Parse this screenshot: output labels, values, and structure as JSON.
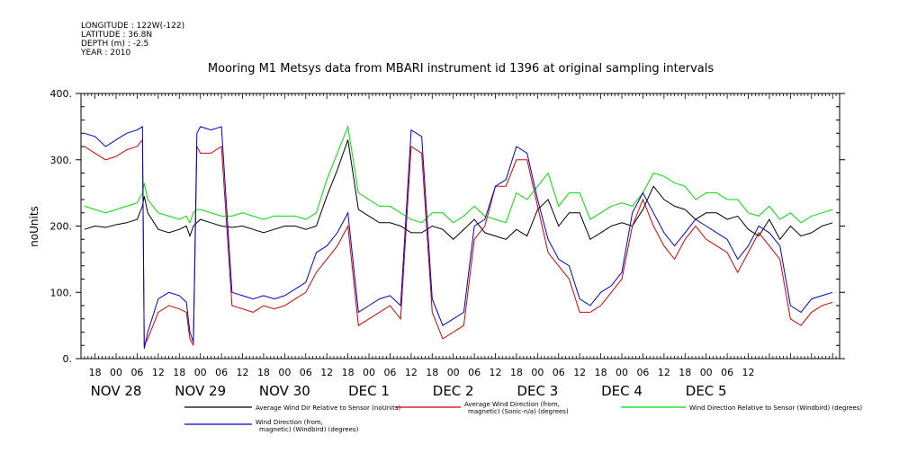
{
  "header": {
    "longitude": "LONGITUDE : 122W(-122)",
    "latitude": "LATITUDE : 36.8N",
    "depth": "DEPTH (m) : -2.5",
    "year": "YEAR : 2010"
  },
  "chart_data": {
    "type": "line",
    "title": "Mooring M1 Metsys data from MBARI instrument id 1396 at original sampling intervals",
    "ylabel": "noUnits",
    "xlabel": "",
    "ylim": [
      0,
      400
    ],
    "yticks": [
      "0.",
      "100.",
      "200.",
      "300.",
      "400."
    ],
    "yticks_values": [
      0,
      100,
      200,
      300,
      400
    ],
    "xlim_hours_from_nov28_00": [
      -10,
      206
    ],
    "hour_ticks": [
      "18",
      "00",
      "06",
      "12",
      "18",
      "00",
      "06",
      "12",
      "18",
      "00",
      "06",
      "12",
      "18",
      "00",
      "06",
      "12",
      "18",
      "00",
      "06",
      "12",
      "18",
      "00",
      "06",
      "12",
      "18",
      "00",
      "06",
      "12",
      "18",
      "00",
      "06",
      "12"
    ],
    "day_labels": [
      {
        "text": "NOV 28",
        "hour": 0
      },
      {
        "text": "NOV 29",
        "hour": 24
      },
      {
        "text": "NOV 30",
        "hour": 48
      },
      {
        "text": "DEC  1",
        "hour": 72
      },
      {
        "text": "DEC  2",
        "hour": 96
      },
      {
        "text": "DEC  3",
        "hour": 120
      },
      {
        "text": "DEC  4",
        "hour": 144
      },
      {
        "text": "DEC  5",
        "hour": 168
      }
    ],
    "x": [
      -9,
      -6,
      -3,
      0,
      3,
      6,
      7.5,
      8,
      9,
      12,
      15,
      18,
      20,
      21,
      22,
      23,
      24,
      27,
      30,
      33,
      36,
      39,
      42,
      45,
      48,
      51,
      54,
      57,
      60,
      63,
      66,
      69,
      72,
      75,
      78,
      81,
      84,
      87,
      90,
      93,
      96,
      99,
      102,
      105,
      108,
      111,
      114,
      117,
      120,
      123,
      126,
      129,
      132,
      135,
      138,
      141,
      144,
      147,
      150,
      153,
      156,
      159,
      162,
      165,
      168,
      171,
      174,
      177,
      180,
      183,
      186,
      189,
      192,
      195,
      198,
      201,
      204
    ],
    "series": [
      {
        "name": "Average Wind Dir Relative to Sensor (noUnits)",
        "color": "#000000",
        "values": [
          195,
          200,
          198,
          202,
          205,
          210,
          230,
          245,
          220,
          195,
          190,
          195,
          200,
          185,
          200,
          205,
          210,
          205,
          200,
          198,
          200,
          195,
          190,
          195,
          200,
          200,
          195,
          200,
          245,
          285,
          330,
          225,
          215,
          205,
          205,
          200,
          190,
          190,
          200,
          195,
          180,
          195,
          210,
          190,
          185,
          180,
          195,
          185,
          225,
          240,
          200,
          220,
          220,
          180,
          190,
          200,
          205,
          200,
          225,
          260,
          240,
          230,
          225,
          210,
          220,
          220,
          210,
          215,
          195,
          185,
          210,
          180,
          200,
          185,
          190,
          200,
          205
        ]
      },
      {
        "name": "Average Wind Direction (from, magnetic) (Sonic-n/a) (degrees)",
        "color": "#d00000",
        "values": [
          320,
          310,
          300,
          305,
          315,
          320,
          330,
          20,
          30,
          70,
          80,
          75,
          70,
          30,
          20,
          320,
          310,
          310,
          320,
          80,
          75,
          70,
          80,
          75,
          80,
          90,
          100,
          130,
          150,
          170,
          200,
          50,
          60,
          70,
          80,
          60,
          320,
          310,
          70,
          30,
          40,
          50,
          180,
          200,
          260,
          260,
          300,
          300,
          230,
          160,
          140,
          120,
          70,
          70,
          80,
          100,
          120,
          200,
          240,
          200,
          170,
          150,
          180,
          200,
          180,
          170,
          160,
          130,
          160,
          190,
          170,
          150,
          60,
          50,
          70,
          80,
          85
        ]
      },
      {
        "name": "Wind Direction Relative to Sensor (Windbird) (degrees)",
        "color": "#00dd00",
        "values": [
          230,
          225,
          220,
          225,
          230,
          235,
          250,
          265,
          240,
          220,
          215,
          210,
          215,
          205,
          220,
          225,
          225,
          220,
          215,
          215,
          220,
          215,
          210,
          215,
          215,
          215,
          210,
          220,
          270,
          310,
          350,
          250,
          240,
          230,
          230,
          220,
          210,
          205,
          220,
          220,
          205,
          215,
          230,
          215,
          210,
          205,
          250,
          240,
          260,
          280,
          230,
          250,
          250,
          210,
          220,
          230,
          235,
          230,
          250,
          280,
          275,
          265,
          260,
          240,
          250,
          250,
          240,
          240,
          220,
          215,
          230,
          210,
          220,
          205,
          215,
          220,
          225
        ]
      },
      {
        "name": "Wind Direction (from, magnetic) (Windbird) (degrees)",
        "color": "#0000d0",
        "values": [
          340,
          335,
          320,
          330,
          340,
          345,
          350,
          15,
          40,
          90,
          100,
          95,
          85,
          40,
          25,
          340,
          350,
          345,
          350,
          100,
          95,
          90,
          95,
          90,
          95,
          105,
          115,
          160,
          170,
          190,
          220,
          70,
          80,
          90,
          95,
          80,
          345,
          335,
          90,
          50,
          60,
          70,
          200,
          210,
          260,
          270,
          320,
          310,
          240,
          180,
          150,
          140,
          90,
          80,
          100,
          110,
          130,
          220,
          250,
          220,
          190,
          170,
          190,
          210,
          200,
          190,
          180,
          150,
          170,
          200,
          190,
          170,
          80,
          70,
          90,
          95,
          100
        ]
      }
    ],
    "legend": [
      {
        "label": "Average Wind Dir Relative to Sensor (noUnits)",
        "color": "#000000"
      },
      {
        "label": "Average Wind Direction (from,\nmagnetic) (Sonic-n/a) (degrees)",
        "color": "#d00000"
      },
      {
        "label": "Wind Direction Relative to Sensor (Windbird) (degrees)",
        "color": "#00dd00"
      },
      {
        "label": "Wind Direction (from,\nmagnetic) (Windbird) (degrees)",
        "color": "#0000d0"
      }
    ],
    "grid": false,
    "legend_position": "bottom"
  }
}
